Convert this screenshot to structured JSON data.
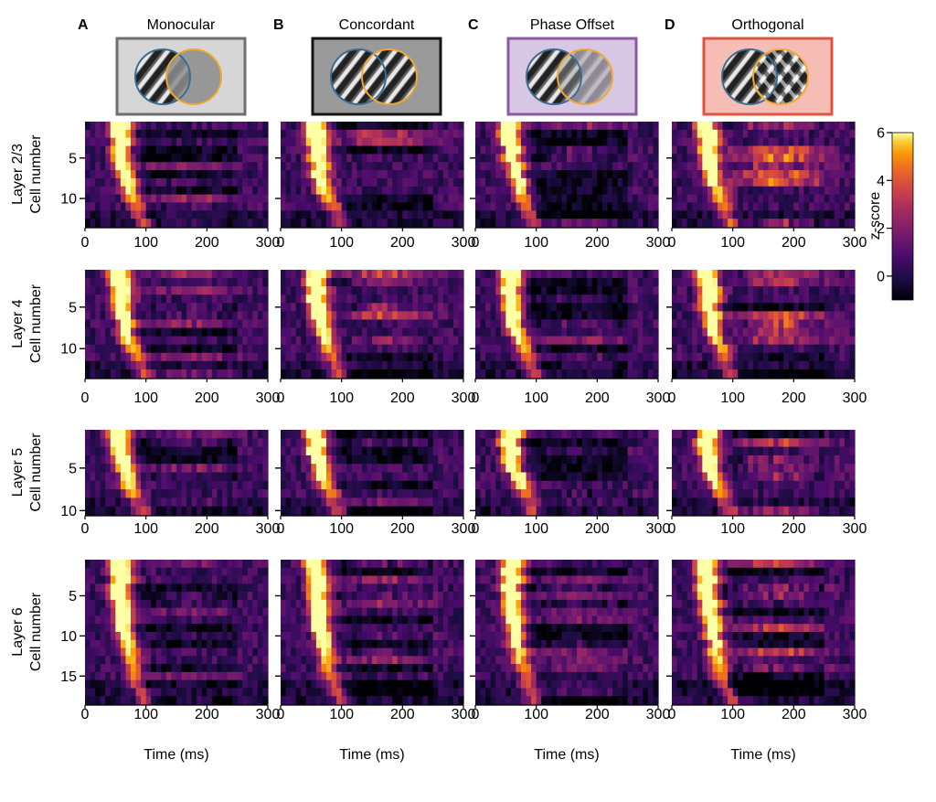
{
  "panels": [
    {
      "letter": "A",
      "title": "Monocular",
      "frame": "#6e6e6e",
      "fill": "#d6d6d6",
      "pattern": "monocular"
    },
    {
      "letter": "B",
      "title": "Concordant",
      "frame": "#141414",
      "fill": "#9a9a9a",
      "pattern": "concordant"
    },
    {
      "letter": "C",
      "title": "Phase Offset",
      "frame": "#8a5aa0",
      "fill": "#d7c7e4",
      "pattern": "phase"
    },
    {
      "letter": "D",
      "title": "Orthogonal",
      "frame": "#e0533f",
      "fill": "#f5bdb4",
      "pattern": "orthogonal"
    }
  ],
  "colors": {
    "left_eye_circle": "#3b6c94",
    "right_eye_circle": "#f0a830"
  },
  "colorbar": {
    "label": "z-score",
    "ticks": [
      "6",
      "4",
      "2",
      "0"
    ],
    "min": -1,
    "max": 6,
    "colormap": "inferno"
  },
  "chart_data": {
    "type": "heatmap",
    "xlabel": "Time (ms)",
    "xlim": [
      0,
      300
    ],
    "xticks": [
      "0",
      "100",
      "200",
      "300"
    ],
    "ylabel": "Cell number",
    "rows": [
      {
        "layer": "Layer 2/3",
        "n_cells": 13,
        "yticks": [
          "5",
          "10"
        ]
      },
      {
        "layer": "Layer 4",
        "n_cells": 13,
        "yticks": [
          "5",
          "10"
        ]
      },
      {
        "layer": "Layer 5",
        "n_cells": 10,
        "yticks": [
          "5",
          "10"
        ]
      },
      {
        "layer": "Layer 6",
        "n_cells": 18,
        "yticks": [
          "5",
          "10",
          "15"
        ]
      }
    ]
  }
}
